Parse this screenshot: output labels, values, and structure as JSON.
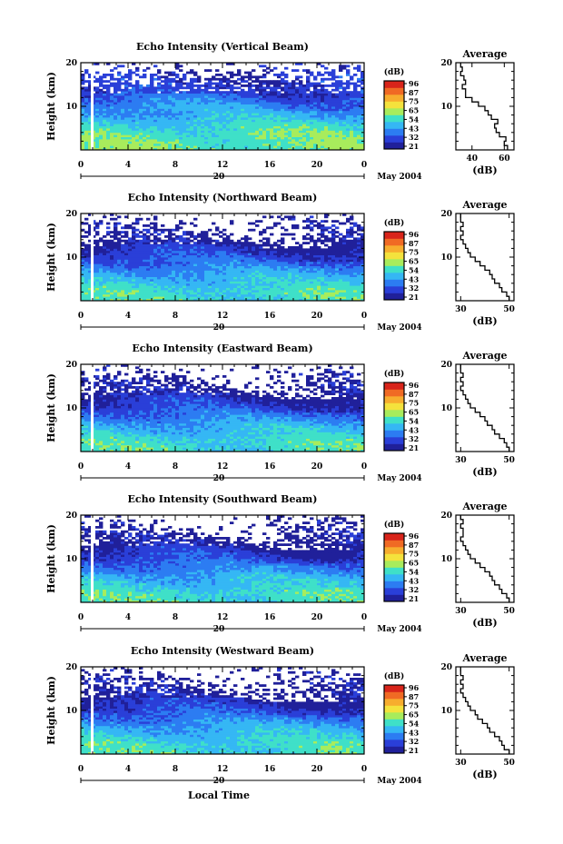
{
  "figure": {
    "x_axis_label": "Local Time",
    "date_label": "20",
    "month_label": "May 2004",
    "height_label": "Height (km)",
    "average_title": "Average",
    "db_label": "(dB)"
  },
  "colorbar": {
    "label": "(dB)",
    "ticks": [
      "96",
      "87",
      "75",
      "65",
      "54",
      "43",
      "32",
      "21"
    ],
    "colors": [
      "#20209a",
      "#2a3fd8",
      "#2c7cf2",
      "#35b7f4",
      "#3fe0c8",
      "#a8ec5c",
      "#f4e23c",
      "#f7ad2e",
      "#f06a24",
      "#d8241a"
    ]
  },
  "chart_data": [
    {
      "type": "heatmap",
      "title": "Echo Intensity (Vertical Beam)",
      "ylabel": "Height (km)",
      "xlabel": "Local Time",
      "x_ticks": [
        "0",
        "4",
        "8",
        "12",
        "16",
        "20",
        "0"
      ],
      "y_ticks": [
        "20",
        "10"
      ],
      "xlim": [
        0,
        24
      ],
      "ylim": [
        0,
        20
      ],
      "z_unit": "dB",
      "z_range": [
        21,
        96
      ],
      "rows_km": [
        2,
        4,
        6,
        8,
        10,
        12,
        14,
        16,
        18,
        20
      ],
      "profile_db": [
        58,
        56,
        52,
        46,
        42,
        36,
        31,
        30,
        28,
        26
      ],
      "average": {
        "title": "Average",
        "xlabel": "(dB)",
        "x_ticks": [
          "40",
          "60"
        ],
        "xlim": [
          30,
          66
        ],
        "y_ticks": [
          "20",
          "10"
        ],
        "height_km": [
          1,
          2,
          3,
          4,
          5,
          6,
          7,
          8,
          9,
          10,
          11,
          12,
          13,
          14,
          15,
          16,
          17,
          18,
          19,
          20
        ],
        "db": [
          62,
          60,
          61,
          57,
          55,
          54,
          56,
          52,
          50,
          48,
          44,
          40,
          36,
          36,
          34,
          36,
          35,
          33,
          34,
          33
        ]
      }
    },
    {
      "type": "heatmap",
      "title": "Echo Intensity (Northward Beam)",
      "ylabel": "Height (km)",
      "xlabel": "Local Time",
      "x_ticks": [
        "0",
        "4",
        "8",
        "12",
        "16",
        "20",
        "0"
      ],
      "y_ticks": [
        "20",
        "10"
      ],
      "xlim": [
        0,
        24
      ],
      "ylim": [
        0,
        20
      ],
      "z_unit": "dB",
      "z_range": [
        21,
        96
      ],
      "rows_km": [
        2,
        4,
        6,
        8,
        10,
        12,
        14,
        16,
        18,
        20
      ],
      "profile_db": [
        54,
        50,
        46,
        40,
        33,
        28,
        25,
        24,
        23,
        22
      ],
      "average": {
        "title": "Average",
        "xlabel": "(dB)",
        "x_ticks": [
          "30",
          "50"
        ],
        "xlim": [
          28,
          52
        ],
        "y_ticks": [
          "20",
          "10"
        ],
        "height_km": [
          1,
          2,
          3,
          4,
          5,
          6,
          7,
          8,
          9,
          10,
          11,
          12,
          13,
          14,
          15,
          16,
          17,
          18,
          19,
          20
        ],
        "db": [
          50,
          49,
          47,
          46,
          44,
          43,
          42,
          40,
          38,
          36,
          34,
          33,
          32,
          31,
          30,
          31,
          30,
          31,
          30,
          30
        ]
      }
    },
    {
      "type": "heatmap",
      "title": "Echo Intensity (Eastward Beam)",
      "ylabel": "Height (km)",
      "xlabel": "Local Time",
      "x_ticks": [
        "0",
        "4",
        "8",
        "12",
        "16",
        "20",
        "0"
      ],
      "y_ticks": [
        "20",
        "10"
      ],
      "xlim": [
        0,
        24
      ],
      "ylim": [
        0,
        20
      ],
      "z_unit": "dB",
      "z_range": [
        21,
        96
      ],
      "rows_km": [
        2,
        4,
        6,
        8,
        10,
        12,
        14,
        16,
        18,
        20
      ],
      "profile_db": [
        54,
        50,
        46,
        40,
        33,
        28,
        25,
        24,
        23,
        22
      ],
      "average": {
        "title": "Average",
        "xlabel": "(dB)",
        "x_ticks": [
          "30",
          "50"
        ],
        "xlim": [
          28,
          52
        ],
        "y_ticks": [
          "20",
          "10"
        ],
        "height_km": [
          1,
          2,
          3,
          4,
          5,
          6,
          7,
          8,
          9,
          10,
          11,
          12,
          13,
          14,
          15,
          16,
          17,
          18,
          19,
          20
        ],
        "db": [
          50,
          49,
          48,
          46,
          44,
          43,
          41,
          40,
          38,
          36,
          34,
          33,
          32,
          31,
          30,
          31,
          30,
          31,
          30,
          30
        ]
      }
    },
    {
      "type": "heatmap",
      "title": "Echo Intensity (Southward Beam)",
      "ylabel": "Height (km)",
      "xlabel": "Local Time",
      "x_ticks": [
        "0",
        "4",
        "8",
        "12",
        "16",
        "20",
        "0"
      ],
      "y_ticks": [
        "20",
        "10"
      ],
      "xlim": [
        0,
        24
      ],
      "ylim": [
        0,
        20
      ],
      "z_unit": "dB",
      "z_range": [
        21,
        96
      ],
      "rows_km": [
        2,
        4,
        6,
        8,
        10,
        12,
        14,
        16,
        18,
        20
      ],
      "profile_db": [
        54,
        50,
        46,
        40,
        33,
        28,
        25,
        24,
        23,
        22
      ],
      "average": {
        "title": "Average",
        "xlabel": "(dB)",
        "x_ticks": [
          "30",
          "50"
        ],
        "xlim": [
          28,
          52
        ],
        "y_ticks": [
          "20",
          "10"
        ],
        "height_km": [
          1,
          2,
          3,
          4,
          5,
          6,
          7,
          8,
          9,
          10,
          11,
          12,
          13,
          14,
          15,
          16,
          17,
          18,
          19,
          20
        ],
        "db": [
          50,
          49,
          47,
          46,
          44,
          43,
          42,
          40,
          38,
          36,
          34,
          33,
          32,
          31,
          30,
          31,
          31,
          30,
          31,
          30
        ]
      }
    },
    {
      "type": "heatmap",
      "title": "Echo Intensity (Westward Beam)",
      "ylabel": "Height (km)",
      "xlabel": "Local Time",
      "x_ticks": [
        "0",
        "4",
        "8",
        "12",
        "16",
        "20",
        "0"
      ],
      "y_ticks": [
        "20",
        "10"
      ],
      "xlim": [
        0,
        24
      ],
      "ylim": [
        0,
        20
      ],
      "z_unit": "dB",
      "z_range": [
        21,
        96
      ],
      "rows_km": [
        2,
        4,
        6,
        8,
        10,
        12,
        14,
        16,
        18,
        20
      ],
      "profile_db": [
        54,
        50,
        46,
        40,
        33,
        28,
        25,
        24,
        23,
        22
      ],
      "average": {
        "title": "Average",
        "xlabel": "(dB)",
        "x_ticks": [
          "30",
          "50"
        ],
        "xlim": [
          28,
          52
        ],
        "y_ticks": [
          "20",
          "10"
        ],
        "height_km": [
          1,
          2,
          3,
          4,
          5,
          6,
          7,
          8,
          9,
          10,
          11,
          12,
          13,
          14,
          15,
          16,
          17,
          18,
          19,
          20
        ],
        "db": [
          50,
          48,
          47,
          46,
          44,
          42,
          41,
          39,
          37,
          36,
          34,
          33,
          32,
          31,
          30,
          31,
          30,
          31,
          30,
          30
        ]
      }
    }
  ]
}
